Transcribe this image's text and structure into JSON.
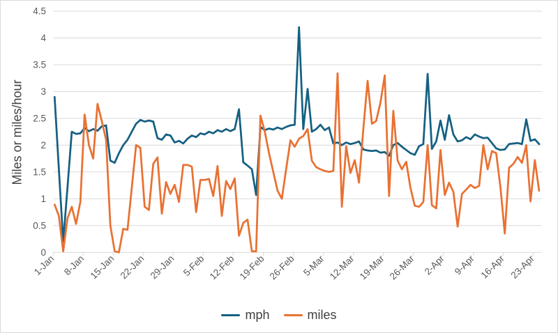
{
  "window": {
    "background": "#FFFFFF",
    "border_color": "#D9D9D9"
  },
  "chart_data": {
    "type": "line",
    "title": "",
    "xlabel": "",
    "ylabel": "Miles or miles/hour",
    "ylim": [
      0,
      4.5
    ],
    "ytick_step": 0.5,
    "ytick_labels": [
      "0",
      "0.5",
      "1",
      "1.5",
      "2",
      "2.5",
      "3",
      "3.5",
      "4",
      "4.5"
    ],
    "x_label_interval": 7,
    "x_tick_labels": [
      "1-Jan",
      "8-Jan",
      "15-Jan",
      "22-Jan",
      "29-Jan",
      "5-Feb",
      "12-Feb",
      "19-Feb",
      "26-Feb",
      "5-Mar",
      "12-Mar",
      "19-Mar",
      "26-Mar",
      "2-Apr",
      "9-Apr",
      "16-Apr",
      "23-Apr"
    ],
    "grid": "horizontal-only",
    "legend_position": "bottom",
    "colors": {
      "gridline": "#D9D9D9",
      "tick": "#D9D9D9",
      "axis_text": "#595959",
      "label_text": "#404040"
    },
    "categories": [
      "1-Jan",
      "2-Jan",
      "3-Jan",
      "4-Jan",
      "5-Jan",
      "6-Jan",
      "7-Jan",
      "8-Jan",
      "9-Jan",
      "10-Jan",
      "11-Jan",
      "12-Jan",
      "13-Jan",
      "14-Jan",
      "15-Jan",
      "16-Jan",
      "17-Jan",
      "18-Jan",
      "19-Jan",
      "20-Jan",
      "21-Jan",
      "22-Jan",
      "23-Jan",
      "24-Jan",
      "25-Jan",
      "26-Jan",
      "27-Jan",
      "28-Jan",
      "29-Jan",
      "30-Jan",
      "31-Jan",
      "1-Feb",
      "2-Feb",
      "3-Feb",
      "4-Feb",
      "5-Feb",
      "6-Feb",
      "7-Feb",
      "8-Feb",
      "9-Feb",
      "10-Feb",
      "11-Feb",
      "12-Feb",
      "13-Feb",
      "14-Feb",
      "15-Feb",
      "16-Feb",
      "17-Feb",
      "18-Feb",
      "19-Feb",
      "20-Feb",
      "21-Feb",
      "22-Feb",
      "23-Feb",
      "24-Feb",
      "25-Feb",
      "26-Feb",
      "27-Feb",
      "28-Feb",
      "1-Mar",
      "2-Mar",
      "3-Mar",
      "4-Mar",
      "5-Mar",
      "6-Mar",
      "7-Mar",
      "8-Mar",
      "9-Mar",
      "10-Mar",
      "11-Mar",
      "12-Mar",
      "13-Mar",
      "14-Mar",
      "15-Mar",
      "16-Mar",
      "17-Mar",
      "18-Mar",
      "19-Mar",
      "20-Mar",
      "21-Mar",
      "22-Mar",
      "23-Mar",
      "24-Mar",
      "25-Mar",
      "26-Mar",
      "27-Mar",
      "28-Mar",
      "29-Mar",
      "30-Mar",
      "31-Mar",
      "1-Apr",
      "2-Apr",
      "3-Apr",
      "4-Apr",
      "5-Apr",
      "6-Apr",
      "7-Apr",
      "8-Apr",
      "9-Apr",
      "10-Apr",
      "11-Apr",
      "12-Apr",
      "13-Apr",
      "14-Apr",
      "15-Apr",
      "16-Apr",
      "17-Apr",
      "18-Apr",
      "19-Apr",
      "20-Apr",
      "21-Apr",
      "22-Apr",
      "23-Apr",
      "24-Apr"
    ],
    "series": [
      {
        "name": "mph",
        "color": "#156082",
        "values": [
          2.9,
          1.55,
          0.2,
          1.2,
          2.25,
          2.21,
          2.22,
          2.32,
          2.26,
          2.3,
          2.27,
          2.35,
          2.37,
          1.71,
          1.67,
          1.85,
          2.0,
          2.1,
          2.25,
          2.4,
          2.47,
          2.44,
          2.46,
          2.44,
          2.13,
          2.1,
          2.2,
          2.18,
          2.05,
          2.08,
          2.03,
          2.12,
          2.18,
          2.15,
          2.22,
          2.2,
          2.25,
          2.22,
          2.28,
          2.25,
          2.3,
          2.26,
          2.3,
          2.67,
          1.68,
          1.62,
          1.55,
          1.07,
          2.34,
          2.28,
          2.31,
          2.29,
          2.33,
          2.3,
          2.34,
          2.37,
          2.38,
          4.2,
          2.3,
          3.05,
          2.25,
          2.3,
          2.38,
          2.28,
          2.33,
          2.03,
          2.05,
          2.0,
          2.05,
          2.02,
          2.04,
          2.07,
          1.92,
          1.9,
          1.89,
          1.9,
          1.86,
          1.87,
          1.8,
          2.0,
          2.04,
          1.97,
          1.91,
          1.85,
          1.82,
          1.98,
          2.02,
          3.33,
          1.93,
          2.07,
          2.46,
          2.1,
          2.56,
          2.2,
          2.07,
          2.09,
          2.15,
          2.11,
          2.2,
          2.16,
          2.13,
          2.14,
          2.04,
          1.94,
          1.91,
          1.92,
          2.02,
          2.03,
          2.04,
          2.02,
          2.48,
          2.08,
          2.11,
          2.02
        ]
      },
      {
        "name": "miles",
        "color": "#E97132",
        "values": [
          0.89,
          0.68,
          0.02,
          0.63,
          0.85,
          0.53,
          0.94,
          2.57,
          2.0,
          1.75,
          2.77,
          2.45,
          2.1,
          0.5,
          0.02,
          0.0,
          0.44,
          0.42,
          1.2,
          2.0,
          1.95,
          0.85,
          0.79,
          1.65,
          1.77,
          0.72,
          1.31,
          1.09,
          1.26,
          0.94,
          1.63,
          1.63,
          1.6,
          0.75,
          1.35,
          1.35,
          1.37,
          1.05,
          1.61,
          0.68,
          1.33,
          1.18,
          1.38,
          0.31,
          0.55,
          0.61,
          0.02,
          0.02,
          2.55,
          2.26,
          1.85,
          1.5,
          1.15,
          1.0,
          1.55,
          2.09,
          1.97,
          2.12,
          2.17,
          2.3,
          1.71,
          1.59,
          1.55,
          1.52,
          1.5,
          1.52,
          3.34,
          0.85,
          1.98,
          1.48,
          1.72,
          1.3,
          2.3,
          3.2,
          2.4,
          2.45,
          2.8,
          3.3,
          1.05,
          2.64,
          1.71,
          1.55,
          1.69,
          1.2,
          0.87,
          0.85,
          0.94,
          2.0,
          0.88,
          0.82,
          1.91,
          1.07,
          1.3,
          1.13,
          0.48,
          1.09,
          1.17,
          1.26,
          1.2,
          1.24,
          2.0,
          1.55,
          1.89,
          1.85,
          1.2,
          0.35,
          1.58,
          1.65,
          1.78,
          1.67,
          2.0,
          0.95,
          1.72,
          1.15
        ]
      }
    ]
  }
}
